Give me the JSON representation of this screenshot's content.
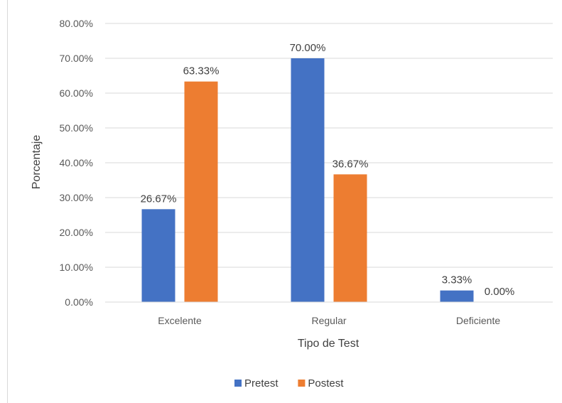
{
  "chart_data": {
    "type": "bar",
    "categories": [
      "Excelente",
      "Regular",
      "Deficiente"
    ],
    "series": [
      {
        "name": "Pretest",
        "values": [
          26.67,
          70.0,
          3.33
        ],
        "labels": [
          "26.67%",
          "70.00%",
          "3.33%"
        ],
        "color": "#4472C4"
      },
      {
        "name": "Postest",
        "values": [
          63.33,
          36.67,
          0.0
        ],
        "labels": [
          "63.33%",
          "36.67%",
          "0.00%"
        ],
        "color": "#ED7D31"
      }
    ],
    "title": "",
    "xlabel": "Tipo de Test",
    "ylabel": "Porcentaje",
    "ylim": [
      0,
      80
    ],
    "yticks": [
      "0.00%",
      "10.00%",
      "20.00%",
      "30.00%",
      "40.00%",
      "50.00%",
      "60.00%",
      "70.00%",
      "80.00%"
    ],
    "grid": true,
    "legend": "bottom",
    "gridline_color": "#d9d9d9"
  }
}
